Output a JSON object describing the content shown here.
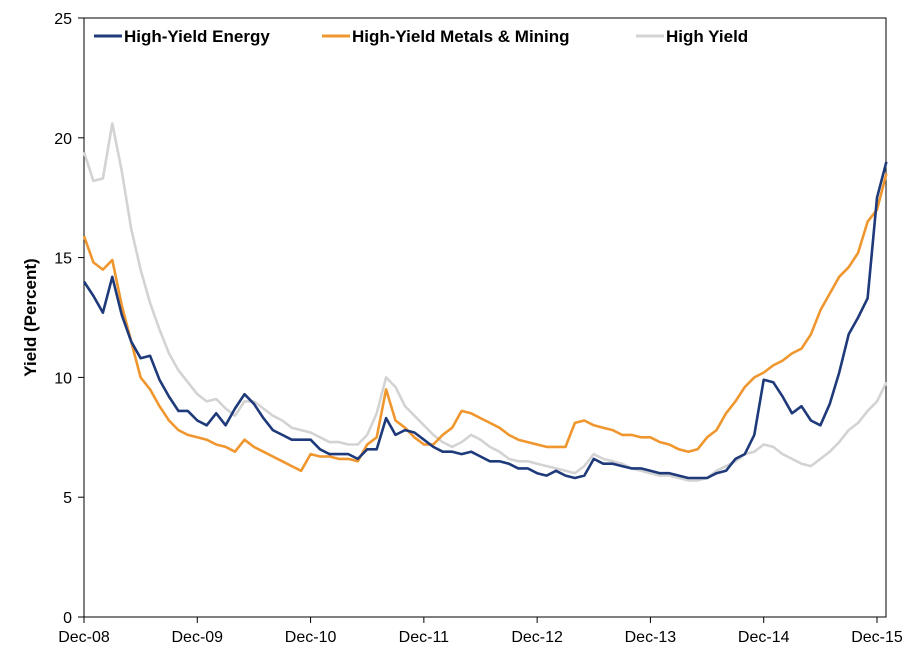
{
  "chart_data": {
    "type": "line",
    "title": "",
    "xlabel": "",
    "ylabel": "Yield (Percent)",
    "x_ticks": [
      "Dec-08",
      "Dec-09",
      "Dec-10",
      "Dec-11",
      "Dec-12",
      "Dec-13",
      "Dec-14",
      "Dec-15"
    ],
    "ylim": [
      0,
      25
    ],
    "y_ticks": [
      0,
      5,
      10,
      15,
      20,
      25
    ],
    "legend_position": "top",
    "grid": false,
    "series": [
      {
        "name": "High-Yield Energy",
        "color": "#1f3a7a",
        "points": [
          [
            "Dec-08",
            14.0
          ],
          [
            "Jan-09",
            13.4
          ],
          [
            "Feb-09",
            12.7
          ],
          [
            "Mar-09",
            14.2
          ],
          [
            "Apr-09",
            12.6
          ],
          [
            "May-09",
            11.5
          ],
          [
            "Jun-09",
            10.8
          ],
          [
            "Jul-09",
            10.9
          ],
          [
            "Aug-09",
            9.9
          ],
          [
            "Sep-09",
            9.2
          ],
          [
            "Oct-09",
            8.6
          ],
          [
            "Nov-09",
            8.6
          ],
          [
            "Dec-09",
            8.2
          ],
          [
            "Jan-10",
            8.0
          ],
          [
            "Feb-10",
            8.5
          ],
          [
            "Mar-10",
            8.0
          ],
          [
            "Apr-10",
            8.7
          ],
          [
            "May-10",
            9.3
          ],
          [
            "Jun-10",
            8.9
          ],
          [
            "Jul-10",
            8.3
          ],
          [
            "Aug-10",
            7.8
          ],
          [
            "Sep-10",
            7.6
          ],
          [
            "Oct-10",
            7.4
          ],
          [
            "Nov-10",
            7.4
          ],
          [
            "Dec-10",
            7.4
          ],
          [
            "Jan-11",
            7.0
          ],
          [
            "Feb-11",
            6.8
          ],
          [
            "Mar-11",
            6.8
          ],
          [
            "Apr-11",
            6.8
          ],
          [
            "May-11",
            6.6
          ],
          [
            "Jun-11",
            7.0
          ],
          [
            "Jul-11",
            7.0
          ],
          [
            "Aug-11",
            8.3
          ],
          [
            "Sep-11",
            7.6
          ],
          [
            "Oct-11",
            7.8
          ],
          [
            "Nov-11",
            7.7
          ],
          [
            "Dec-11",
            7.4
          ],
          [
            "Jan-12",
            7.1
          ],
          [
            "Feb-12",
            6.9
          ],
          [
            "Mar-12",
            6.9
          ],
          [
            "Apr-12",
            6.8
          ],
          [
            "May-12",
            6.9
          ],
          [
            "Jun-12",
            6.7
          ],
          [
            "Jul-12",
            6.5
          ],
          [
            "Aug-12",
            6.5
          ],
          [
            "Sep-12",
            6.4
          ],
          [
            "Oct-12",
            6.2
          ],
          [
            "Nov-12",
            6.2
          ],
          [
            "Dec-12",
            6.0
          ],
          [
            "Jan-13",
            5.9
          ],
          [
            "Feb-13",
            6.1
          ],
          [
            "Mar-13",
            5.9
          ],
          [
            "Apr-13",
            5.8
          ],
          [
            "May-13",
            5.9
          ],
          [
            "Jun-13",
            6.6
          ],
          [
            "Jul-13",
            6.4
          ],
          [
            "Aug-13",
            6.4
          ],
          [
            "Sep-13",
            6.3
          ],
          [
            "Oct-13",
            6.2
          ],
          [
            "Nov-13",
            6.2
          ],
          [
            "Dec-13",
            6.1
          ],
          [
            "Jan-14",
            6.0
          ],
          [
            "Feb-14",
            6.0
          ],
          [
            "Mar-14",
            5.9
          ],
          [
            "Apr-14",
            5.8
          ],
          [
            "May-14",
            5.8
          ],
          [
            "Jun-14",
            5.8
          ],
          [
            "Jul-14",
            6.0
          ],
          [
            "Aug-14",
            6.1
          ],
          [
            "Sep-14",
            6.6
          ],
          [
            "Oct-14",
            6.8
          ],
          [
            "Nov-14",
            7.6
          ],
          [
            "Dec-14",
            9.9
          ],
          [
            "Jan-15",
            9.8
          ],
          [
            "Feb-15",
            9.2
          ],
          [
            "Mar-15",
            8.5
          ],
          [
            "Apr-15",
            8.8
          ],
          [
            "May-15",
            8.2
          ],
          [
            "Jun-15",
            8.0
          ],
          [
            "Jul-15",
            8.9
          ],
          [
            "Aug-15",
            10.2
          ],
          [
            "Sep-15",
            11.8
          ],
          [
            "Oct-15",
            12.5
          ],
          [
            "Nov-15",
            13.3
          ],
          [
            "Dec-15",
            17.5
          ],
          [
            "Jan-16",
            19.0
          ]
        ]
      },
      {
        "name": "High-Yield Metals & Mining",
        "color": "#f0962e",
        "points": [
          [
            "Dec-08",
            15.9
          ],
          [
            "Jan-09",
            14.8
          ],
          [
            "Feb-09",
            14.5
          ],
          [
            "Mar-09",
            14.9
          ],
          [
            "Apr-09",
            13.0
          ],
          [
            "May-09",
            11.5
          ],
          [
            "Jun-09",
            10.0
          ],
          [
            "Jul-09",
            9.5
          ],
          [
            "Aug-09",
            8.8
          ],
          [
            "Sep-09",
            8.2
          ],
          [
            "Oct-09",
            7.8
          ],
          [
            "Nov-09",
            7.6
          ],
          [
            "Dec-09",
            7.5
          ],
          [
            "Jan-10",
            7.4
          ],
          [
            "Feb-10",
            7.2
          ],
          [
            "Mar-10",
            7.1
          ],
          [
            "Apr-10",
            6.9
          ],
          [
            "May-10",
            7.4
          ],
          [
            "Jun-10",
            7.1
          ],
          [
            "Jul-10",
            6.9
          ],
          [
            "Aug-10",
            6.7
          ],
          [
            "Sep-10",
            6.5
          ],
          [
            "Oct-10",
            6.3
          ],
          [
            "Nov-10",
            6.1
          ],
          [
            "Dec-10",
            6.8
          ],
          [
            "Jan-11",
            6.7
          ],
          [
            "Feb-11",
            6.7
          ],
          [
            "Mar-11",
            6.6
          ],
          [
            "Apr-11",
            6.6
          ],
          [
            "May-11",
            6.5
          ],
          [
            "Jun-11",
            7.2
          ],
          [
            "Jul-11",
            7.5
          ],
          [
            "Aug-11",
            9.5
          ],
          [
            "Sep-11",
            8.2
          ],
          [
            "Oct-11",
            7.9
          ],
          [
            "Nov-11",
            7.5
          ],
          [
            "Dec-11",
            7.2
          ],
          [
            "Jan-12",
            7.2
          ],
          [
            "Feb-12",
            7.6
          ],
          [
            "Mar-12",
            7.9
          ],
          [
            "Apr-12",
            8.6
          ],
          [
            "May-12",
            8.5
          ],
          [
            "Jun-12",
            8.3
          ],
          [
            "Jul-12",
            8.1
          ],
          [
            "Aug-12",
            7.9
          ],
          [
            "Sep-12",
            7.6
          ],
          [
            "Oct-12",
            7.4
          ],
          [
            "Nov-12",
            7.3
          ],
          [
            "Dec-12",
            7.2
          ],
          [
            "Jan-13",
            7.1
          ],
          [
            "Feb-13",
            7.1
          ],
          [
            "Mar-13",
            7.1
          ],
          [
            "Apr-13",
            8.1
          ],
          [
            "May-13",
            8.2
          ],
          [
            "Jun-13",
            8.0
          ],
          [
            "Jul-13",
            7.9
          ],
          [
            "Aug-13",
            7.8
          ],
          [
            "Sep-13",
            7.6
          ],
          [
            "Oct-13",
            7.6
          ],
          [
            "Nov-13",
            7.5
          ],
          [
            "Dec-13",
            7.5
          ],
          [
            "Jan-14",
            7.3
          ],
          [
            "Feb-14",
            7.2
          ],
          [
            "Mar-14",
            7.0
          ],
          [
            "Apr-14",
            6.9
          ],
          [
            "May-14",
            7.0
          ],
          [
            "Jun-14",
            7.5
          ],
          [
            "Jul-14",
            7.8
          ],
          [
            "Aug-14",
            8.5
          ],
          [
            "Sep-14",
            9.0
          ],
          [
            "Oct-14",
            9.6
          ],
          [
            "Nov-14",
            10.0
          ],
          [
            "Dec-14",
            10.2
          ],
          [
            "Jan-15",
            10.5
          ],
          [
            "Feb-15",
            10.7
          ],
          [
            "Mar-15",
            11.0
          ],
          [
            "Apr-15",
            11.2
          ],
          [
            "May-15",
            11.8
          ],
          [
            "Jun-15",
            12.8
          ],
          [
            "Jul-15",
            13.5
          ],
          [
            "Aug-15",
            14.2
          ],
          [
            "Sep-15",
            14.6
          ],
          [
            "Oct-15",
            15.2
          ],
          [
            "Nov-15",
            16.5
          ],
          [
            "Dec-15",
            17.0
          ],
          [
            "Jan-16",
            18.5
          ]
        ]
      },
      {
        "name": "High Yield",
        "color": "#d3d3d3",
        "points": [
          [
            "Dec-08",
            19.4
          ],
          [
            "Jan-09",
            18.2
          ],
          [
            "Feb-09",
            18.3
          ],
          [
            "Mar-09",
            20.6
          ],
          [
            "Apr-09",
            18.6
          ],
          [
            "May-09",
            16.2
          ],
          [
            "Jun-09",
            14.5
          ],
          [
            "Jul-09",
            13.1
          ],
          [
            "Aug-09",
            12.0
          ],
          [
            "Sep-09",
            11.0
          ],
          [
            "Oct-09",
            10.3
          ],
          [
            "Nov-09",
            9.8
          ],
          [
            "Dec-09",
            9.3
          ],
          [
            "Jan-10",
            9.0
          ],
          [
            "Feb-10",
            9.1
          ],
          [
            "Mar-10",
            8.7
          ],
          [
            "Apr-10",
            8.4
          ],
          [
            "May-10",
            9.0
          ],
          [
            "Jun-10",
            9.0
          ],
          [
            "Jul-10",
            8.7
          ],
          [
            "Aug-10",
            8.4
          ],
          [
            "Sep-10",
            8.2
          ],
          [
            "Oct-10",
            7.9
          ],
          [
            "Nov-10",
            7.8
          ],
          [
            "Dec-10",
            7.7
          ],
          [
            "Jan-11",
            7.5
          ],
          [
            "Feb-11",
            7.3
          ],
          [
            "Mar-11",
            7.3
          ],
          [
            "Apr-11",
            7.2
          ],
          [
            "May-11",
            7.2
          ],
          [
            "Jun-11",
            7.6
          ],
          [
            "Jul-11",
            8.5
          ],
          [
            "Aug-11",
            10.0
          ],
          [
            "Sep-11",
            9.6
          ],
          [
            "Oct-11",
            8.8
          ],
          [
            "Nov-11",
            8.4
          ],
          [
            "Dec-11",
            8.0
          ],
          [
            "Jan-12",
            7.6
          ],
          [
            "Feb-12",
            7.3
          ],
          [
            "Mar-12",
            7.1
          ],
          [
            "Apr-12",
            7.3
          ],
          [
            "May-12",
            7.6
          ],
          [
            "Jun-12",
            7.4
          ],
          [
            "Jul-12",
            7.1
          ],
          [
            "Aug-12",
            6.9
          ],
          [
            "Sep-12",
            6.6
          ],
          [
            "Oct-12",
            6.5
          ],
          [
            "Nov-12",
            6.5
          ],
          [
            "Dec-12",
            6.4
          ],
          [
            "Jan-13",
            6.3
          ],
          [
            "Feb-13",
            6.2
          ],
          [
            "Mar-13",
            6.1
          ],
          [
            "Apr-13",
            6.0
          ],
          [
            "May-13",
            6.3
          ],
          [
            "Jun-13",
            6.8
          ],
          [
            "Jul-13",
            6.6
          ],
          [
            "Aug-13",
            6.5
          ],
          [
            "Sep-13",
            6.4
          ],
          [
            "Oct-13",
            6.2
          ],
          [
            "Nov-13",
            6.1
          ],
          [
            "Dec-13",
            6.0
          ],
          [
            "Jan-14",
            5.9
          ],
          [
            "Feb-14",
            5.9
          ],
          [
            "Mar-14",
            5.8
          ],
          [
            "Apr-14",
            5.7
          ],
          [
            "May-14",
            5.7
          ],
          [
            "Jun-14",
            5.8
          ],
          [
            "Jul-14",
            6.1
          ],
          [
            "Aug-14",
            6.3
          ],
          [
            "Sep-14",
            6.5
          ],
          [
            "Oct-14",
            6.8
          ],
          [
            "Nov-14",
            6.9
          ],
          [
            "Dec-14",
            7.2
          ],
          [
            "Jan-15",
            7.1
          ],
          [
            "Feb-15",
            6.8
          ],
          [
            "Mar-15",
            6.6
          ],
          [
            "Apr-15",
            6.4
          ],
          [
            "May-15",
            6.3
          ],
          [
            "Jun-15",
            6.6
          ],
          [
            "Jul-15",
            6.9
          ],
          [
            "Aug-15",
            7.3
          ],
          [
            "Sep-15",
            7.8
          ],
          [
            "Oct-15",
            8.1
          ],
          [
            "Nov-15",
            8.6
          ],
          [
            "Dec-15",
            9.0
          ],
          [
            "Jan-16",
            9.8
          ]
        ]
      }
    ]
  }
}
